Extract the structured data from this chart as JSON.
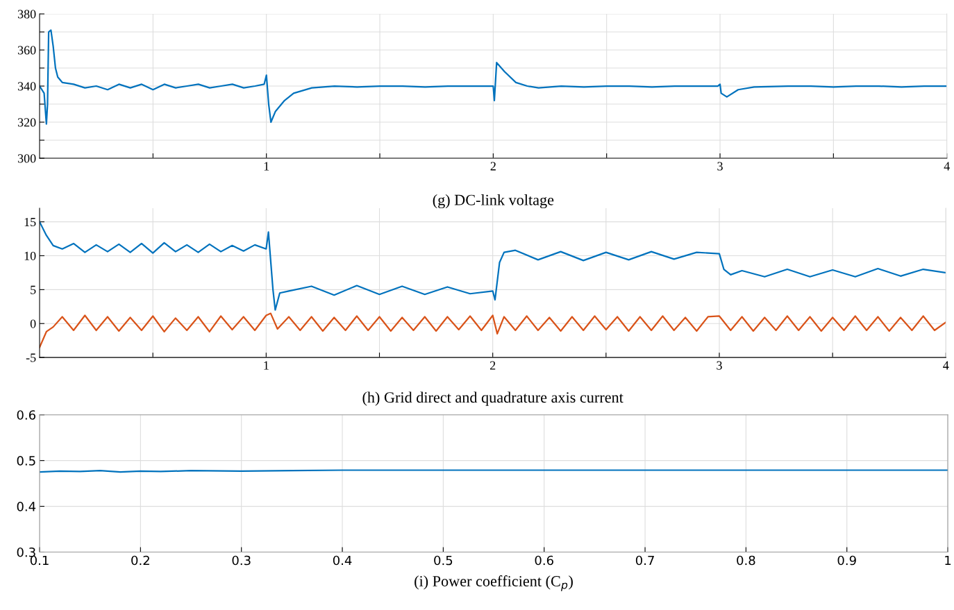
{
  "chart_data": [
    {
      "type": "line",
      "xlabel": "(g) DC-link voltage",
      "xlim": [
        0,
        4
      ],
      "ylim": [
        300,
        380
      ],
      "grid": true,
      "xticks": [
        {
          "value": 0.5,
          "label": null
        },
        1,
        {
          "value": 1.5,
          "label": null
        },
        2,
        {
          "value": 2.5,
          "label": null
        },
        3,
        {
          "value": 3.5,
          "label": null
        },
        4
      ],
      "yticks": [
        300,
        {
          "value": 310,
          "label": null
        },
        320,
        {
          "value": 330,
          "label": null
        },
        340,
        {
          "value": 350,
          "label": null
        },
        360,
        {
          "value": 370,
          "label": null
        },
        380
      ],
      "series": [
        {
          "color": "#0072bd",
          "x": [
            0,
            0.02,
            0.03,
            0.035,
            0.04,
            0.05,
            0.06,
            0.07,
            0.08,
            0.1,
            0.15,
            0.2,
            0.25,
            0.3,
            0.35,
            0.4,
            0.45,
            0.5,
            0.55,
            0.6,
            0.65,
            0.7,
            0.75,
            0.8,
            0.85,
            0.9,
            0.95,
            0.99,
            1.0,
            1.01,
            1.02,
            1.04,
            1.08,
            1.12,
            1.2,
            1.3,
            1.4,
            1.5,
            1.6,
            1.7,
            1.8,
            1.9,
            1.99,
            2.0,
            2.005,
            2.015,
            2.05,
            2.1,
            2.15,
            2.2,
            2.3,
            2.4,
            2.5,
            2.6,
            2.7,
            2.8,
            2.9,
            2.99,
            3.0,
            3.005,
            3.03,
            3.08,
            3.15,
            3.3,
            3.4,
            3.5,
            3.6,
            3.7,
            3.8,
            3.9,
            4.0
          ],
          "values": [
            340,
            336,
            319,
            330,
            370,
            371,
            362,
            350,
            345,
            342,
            341,
            339,
            340,
            338,
            341,
            339,
            341,
            338,
            341,
            339,
            340,
            341,
            339,
            340,
            341,
            339,
            340,
            341,
            346,
            330,
            320,
            326,
            332,
            336,
            339,
            340,
            339.5,
            340,
            340,
            339.5,
            340,
            340,
            340,
            340,
            332,
            353,
            348,
            342,
            340,
            339,
            340,
            339.5,
            340,
            340,
            339.5,
            340,
            340,
            340,
            341,
            336,
            334,
            338,
            339.5,
            340,
            340,
            339.5,
            340,
            340,
            339.5,
            340,
            340
          ]
        }
      ]
    },
    {
      "type": "line",
      "xlabel": "(h) Grid direct and quadrature axis current",
      "xlim": [
        0,
        4
      ],
      "ylim": [
        -5,
        17
      ],
      "grid": true,
      "xticks": [
        {
          "value": 0.5,
          "label": null
        },
        1,
        {
          "value": 1.5,
          "label": null
        },
        2,
        {
          "value": 2.5,
          "label": null
        },
        3,
        {
          "value": 3.5,
          "label": null
        },
        4
      ],
      "yticks": [
        -5,
        0,
        5,
        10,
        15
      ],
      "series": [
        {
          "color": "#0072bd",
          "x": [
            0,
            0.03,
            0.06,
            0.1,
            0.15,
            0.2,
            0.25,
            0.3,
            0.35,
            0.4,
            0.45,
            0.5,
            0.55,
            0.6,
            0.65,
            0.7,
            0.75,
            0.8,
            0.85,
            0.9,
            0.95,
            1.0,
            1.01,
            1.03,
            1.04,
            1.06,
            1.1,
            1.2,
            1.3,
            1.4,
            1.5,
            1.6,
            1.7,
            1.8,
            1.9,
            2.0,
            2.01,
            2.03,
            2.05,
            2.1,
            2.2,
            2.3,
            2.4,
            2.5,
            2.6,
            2.7,
            2.8,
            2.9,
            3.0,
            3.02,
            3.05,
            3.1,
            3.2,
            3.3,
            3.4,
            3.5,
            3.6,
            3.7,
            3.8,
            3.9,
            4.0
          ],
          "values": [
            15,
            13,
            11.5,
            11,
            11.8,
            10.5,
            11.6,
            10.6,
            11.7,
            10.5,
            11.8,
            10.4,
            11.9,
            10.6,
            11.6,
            10.5,
            11.7,
            10.6,
            11.5,
            10.7,
            11.6,
            11,
            13.5,
            5,
            2,
            4.5,
            4.8,
            5.5,
            4.2,
            5.6,
            4.3,
            5.5,
            4.3,
            5.4,
            4.4,
            4.8,
            3.5,
            9,
            10.5,
            10.8,
            9.4,
            10.6,
            9.3,
            10.5,
            9.4,
            10.6,
            9.5,
            10.5,
            10.3,
            8,
            7.2,
            7.8,
            6.9,
            8,
            6.9,
            7.9,
            6.9,
            8.1,
            7,
            8,
            7.5
          ]
        },
        {
          "color": "#d95319",
          "x": [
            0,
            0.03,
            0.06,
            0.1,
            0.15,
            0.2,
            0.25,
            0.3,
            0.35,
            0.4,
            0.45,
            0.5,
            0.55,
            0.6,
            0.65,
            0.7,
            0.75,
            0.8,
            0.85,
            0.9,
            0.95,
            1.0,
            1.02,
            1.05,
            1.1,
            1.15,
            1.2,
            1.25,
            1.3,
            1.35,
            1.4,
            1.45,
            1.5,
            1.55,
            1.6,
            1.65,
            1.7,
            1.75,
            1.8,
            1.85,
            1.9,
            1.95,
            2.0,
            2.02,
            2.05,
            2.1,
            2.15,
            2.2,
            2.25,
            2.3,
            2.35,
            2.4,
            2.45,
            2.5,
            2.55,
            2.6,
            2.65,
            2.7,
            2.75,
            2.8,
            2.85,
            2.9,
            2.95,
            3.0,
            3.05,
            3.1,
            3.15,
            3.2,
            3.25,
            3.3,
            3.35,
            3.4,
            3.45,
            3.5,
            3.55,
            3.6,
            3.65,
            3.7,
            3.75,
            3.8,
            3.85,
            3.9,
            3.95,
            4.0
          ],
          "values": [
            -3.5,
            -1.2,
            -0.5,
            1,
            -1,
            1.2,
            -1,
            1,
            -1.1,
            0.9,
            -1,
            1.1,
            -1.2,
            0.8,
            -1,
            1,
            -1.2,
            1.1,
            -0.9,
            1,
            -1,
            1.2,
            1.5,
            -0.8,
            1,
            -1,
            1,
            -1.1,
            0.9,
            -1,
            1.1,
            -1,
            1,
            -1.1,
            0.9,
            -1,
            1,
            -1.1,
            1,
            -0.9,
            1.1,
            -1,
            1.2,
            -1.5,
            1,
            -1,
            1.1,
            -1,
            0.9,
            -1.1,
            1,
            -1,
            1.1,
            -0.9,
            1,
            -1.1,
            1,
            -1,
            1.1,
            -1,
            0.9,
            -1.1,
            1,
            1.1,
            -1,
            1,
            -1.1,
            0.9,
            -1,
            1.1,
            -1,
            1,
            -1.1,
            0.9,
            -1,
            1.1,
            -1,
            1,
            -1.1,
            0.9,
            -1,
            1.1,
            -1,
            0.2
          ]
        }
      ]
    },
    {
      "type": "line",
      "xlabel": "(i) Power coefficient (C$_{p}$)",
      "xlim": [
        0.1,
        1
      ],
      "ylim": [
        0.3,
        0.6
      ],
      "grid": true,
      "xticks": [
        0.1,
        0.2,
        0.3,
        0.4,
        0.5,
        0.6,
        0.7,
        0.8,
        0.9,
        1
      ],
      "yticks": [
        0.3,
        0.4,
        0.5,
        0.6
      ],
      "series": [
        {
          "color": "#0072bd",
          "x": [
            0.1,
            0.12,
            0.14,
            0.16,
            0.18,
            0.2,
            0.22,
            0.25,
            0.3,
            0.35,
            0.4,
            0.5,
            0.6,
            0.8,
            1.0
          ],
          "values": [
            0.475,
            0.477,
            0.476,
            0.478,
            0.475,
            0.477,
            0.476,
            0.478,
            0.477,
            0.478,
            0.479,
            0.479,
            0.479,
            0.479,
            0.479
          ]
        }
      ]
    }
  ]
}
